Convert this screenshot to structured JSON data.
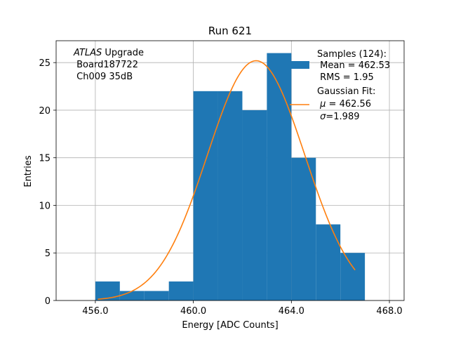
{
  "chart_data": {
    "type": "bar",
    "title": "Run 621",
    "xlabel": "Energy [ADC Counts]",
    "ylabel": "Entries",
    "xlim": [
      454.4,
      468.6
    ],
    "ylim": [
      0,
      27.3
    ],
    "xticks": [
      456.0,
      460.0,
      464.0,
      468.0
    ],
    "xtick_labels": [
      "456.0",
      "460.0",
      "464.0",
      "468.0"
    ],
    "yticks": [
      0,
      5,
      10,
      15,
      20,
      25
    ],
    "ytick_labels": [
      "0",
      "5",
      "10",
      "15",
      "20",
      "25"
    ],
    "grid": true,
    "bin_edges": [
      456,
      457,
      458,
      459,
      460,
      461,
      462,
      463,
      464,
      465,
      466,
      467
    ],
    "counts": [
      2,
      1,
      1,
      2,
      22,
      22,
      20,
      26,
      15,
      8,
      5
    ],
    "bar_color": "#1f77b4",
    "fit": {
      "name": "Gaussian Fit",
      "mu": 462.56,
      "sigma": 1.989,
      "amplitude": 25.2,
      "x_range": [
        456.1,
        466.6
      ],
      "color": "#ff7f0e"
    },
    "annotation": {
      "line1_italic": "ATLAS",
      "line1_rest": " Upgrade",
      "line2": " Board187722",
      "line3": " Ch009 35dB"
    },
    "legend": {
      "placement": "top-right",
      "samples_line1": "Samples (124):",
      "samples_line2": " Mean = 462.53",
      "samples_line3": " RMS = 1.95",
      "fit_line1": "Gaussian Fit:",
      "fit_line2_symbol": "μ",
      "fit_line2_rest": " = 462.56",
      "fit_line3_symbol": "σ",
      "fit_line3_rest": "=1.989"
    }
  }
}
